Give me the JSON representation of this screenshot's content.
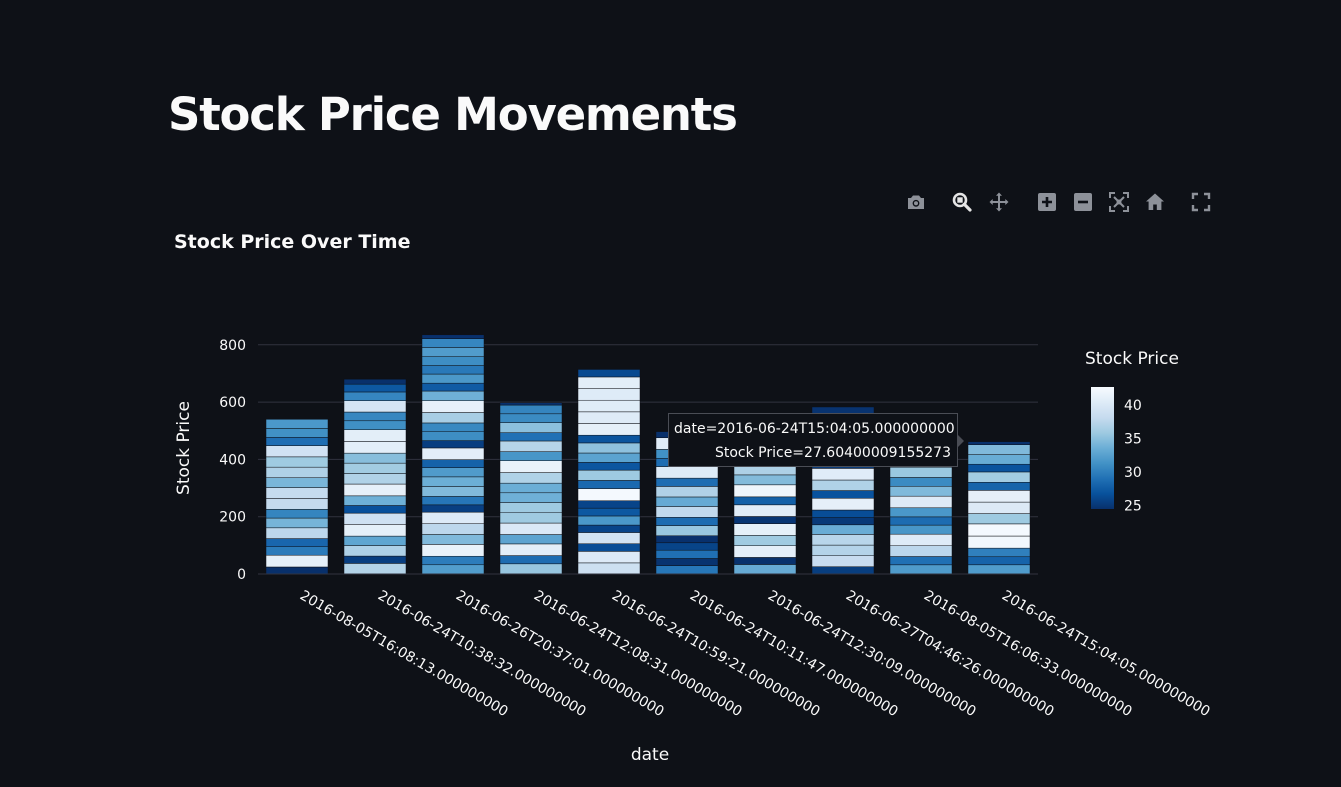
{
  "page": {
    "title": "Stock Price Movements"
  },
  "toolbar": {
    "icons": [
      "camera-icon",
      "zoom-icon",
      "pan-icon",
      "zoom-in-icon",
      "zoom-out-icon",
      "autoscale-icon",
      "reset-axes-icon",
      "fullscreen-icon"
    ],
    "icon_color": "#8d9199"
  },
  "colors": {
    "background": "#0e1117",
    "grid": "#31333f",
    "text": "#fafafa",
    "colorscale": [
      "#08306b",
      "#08519c",
      "#2171b5",
      "#4292c6",
      "#6baed6",
      "#9ecae1",
      "#c6dbef",
      "#deebf7",
      "#f7fbff"
    ]
  },
  "tooltip": {
    "line1": "date=2016-06-24T15:04:05.000000000",
    "line2": "Stock Price=27.60400009155273"
  },
  "chart_data": {
    "type": "bar",
    "stacked": true,
    "title": "Stock Price Over Time",
    "xlabel": "date",
    "ylabel": "Stock Price",
    "ylim": [
      0,
      840
    ],
    "yticks": [
      0,
      200,
      400,
      600,
      800
    ],
    "grid": true,
    "categories": [
      "2016-08-05T16:08:13.000000000",
      "2016-06-24T10:38:32.000000000",
      "2016-06-26T20:37:01.000000000",
      "2016-06-24T12:08:31.000000000",
      "2016-06-24T10:59:21.000000000",
      "2016-06-24T10:11:47.000000000",
      "2016-06-24T12:30:09.000000000",
      "2016-06-27T04:46:26.000000000",
      "2016-08-05T16:06:33.000000000",
      "2016-06-24T15:04:05.000000000"
    ],
    "totals": [
      540,
      680,
      835,
      598,
      714,
      497,
      477,
      583,
      472,
      462
    ],
    "colorbar": {
      "title": "Stock Price",
      "range": [
        24.5,
        42.7
      ],
      "ticks": [
        25,
        30,
        35,
        40
      ],
      "position": "right"
    }
  }
}
